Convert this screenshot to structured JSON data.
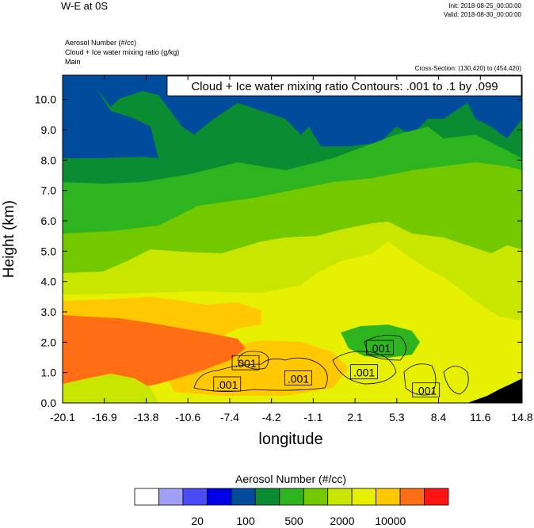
{
  "header": {
    "title": "W-E at 0S",
    "init": "Init: 2018-08-25_00:00:00",
    "valid": "Valid: 2018-08-30_00:00:00",
    "fields": [
      "Aerosol Number   (#/cc)",
      "Cloud + Ice water mixing ratio   (g/kg)",
      "Main"
    ],
    "cross_section": "Cross-Section: (130,420) to (454,420)"
  },
  "chart_data": {
    "type": "heatmap",
    "title": "",
    "xlabel": "longitude",
    "ylabel": "Height (km)",
    "x_ticks": [
      "-20.1",
      "-16.9",
      "-13.8",
      "-10.6",
      "-7.4",
      "-4.2",
      "-1.1",
      "2.1",
      "5.3",
      "8.4",
      "11.6",
      "14.8"
    ],
    "y_ticks": [
      "0.0",
      "1.0",
      "2.0",
      "3.0",
      "4.0",
      "5.0",
      "6.0",
      "7.0",
      "8.0",
      "9.0",
      "10.0"
    ],
    "xlim": [
      -20.1,
      14.8
    ],
    "ylim": [
      0,
      10.8
    ],
    "contour_info": "Cloud + Ice water mixing ratio Contours: .001 to .1 by .099",
    "contour_labels": [
      {
        "text": ".001",
        "x": -6.2,
        "y": 1.3
      },
      {
        "text": ".001",
        "x": -7.6,
        "y": 0.6
      },
      {
        "text": ".001",
        "x": -2.2,
        "y": 0.8
      },
      {
        "text": ".001",
        "x": 2.8,
        "y": 1.0
      },
      {
        "text": ".001",
        "x": 4.0,
        "y": 1.8
      },
      {
        "text": ".001",
        "x": 7.5,
        "y": 0.4
      }
    ],
    "colorbar": {
      "title": "Aerosol Number  (#/cc)",
      "labels": [
        {
          "text": "20",
          "index": 2
        },
        {
          "text": "100",
          "index": 4
        },
        {
          "text": "500",
          "index": 6
        },
        {
          "text": "2000",
          "index": 8
        },
        {
          "text": "10000",
          "index": 10
        }
      ],
      "colors": [
        "#ffffff",
        "#a0a0f5",
        "#4b4bf5",
        "#0000e6",
        "#004b9b",
        "#0a8c32",
        "#2db41e",
        "#73c800",
        "#c8e600",
        "#e6f000",
        "#ffc800",
        "#ff6e14",
        "#ff1414"
      ]
    },
    "fill_colors": {
      "blue_dark": "#004b9b",
      "green_dark": "#0a8c32",
      "green_mid": "#2db41e",
      "green_light": "#73c800",
      "yellow_green": "#c8e600",
      "yellow": "#e6f000",
      "gold": "#ffc800",
      "orange": "#ff6e14",
      "terrain": "#000000"
    }
  }
}
